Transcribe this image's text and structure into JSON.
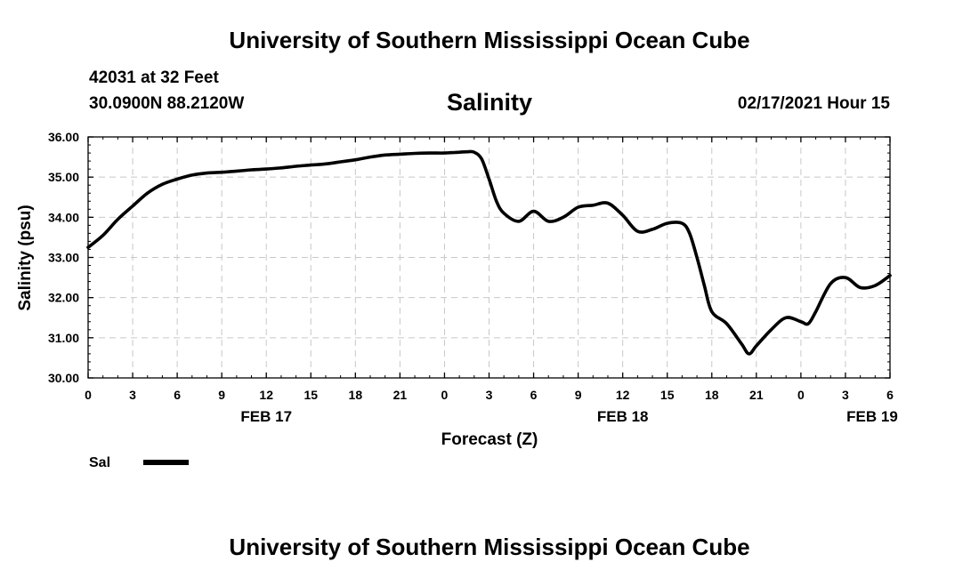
{
  "header": {
    "title": "University of Southern Mississippi Ocean Cube",
    "station": "42031 at 32 Feet",
    "coords": "30.0900N 88.2120W",
    "chart_title": "Salinity",
    "issued": "02/17/2021 Hour 15"
  },
  "footer": {
    "title": "University of Southern Mississippi Ocean Cube"
  },
  "legend": {
    "label": "Sal",
    "color": "#000000"
  },
  "chart_data": {
    "type": "line",
    "title": "Salinity",
    "xlabel": "Forecast (Z)",
    "ylabel": "Salinity (psu)",
    "xlim": [
      0,
      54
    ],
    "ylim": [
      30.0,
      36.0
    ],
    "grid": true,
    "x_tick_values": [
      0,
      3,
      6,
      9,
      12,
      15,
      18,
      21,
      24,
      27,
      30,
      33,
      36,
      39,
      42,
      45,
      48,
      51,
      54
    ],
    "x_tick_labels": [
      "0",
      "3",
      "6",
      "9",
      "12",
      "15",
      "18",
      "21",
      "0",
      "3",
      "6",
      "9",
      "12",
      "15",
      "18",
      "21",
      "0",
      "3",
      "6"
    ],
    "y_tick_values": [
      30,
      31,
      32,
      33,
      34,
      35,
      36
    ],
    "y_tick_labels": [
      "30.00",
      "31.00",
      "32.00",
      "33.00",
      "34.00",
      "35.00",
      "36.00"
    ],
    "date_labels": [
      {
        "label": "FEB 17",
        "x": 12
      },
      {
        "label": "FEB 18",
        "x": 36
      },
      {
        "label": "FEB 19",
        "x": 52.8
      }
    ],
    "series": [
      {
        "name": "Sal",
        "color": "#000000",
        "x": [
          0,
          1,
          2,
          3,
          4,
          5,
          6,
          7,
          8,
          9,
          10,
          11,
          12,
          13,
          14,
          15,
          16,
          17,
          18,
          19,
          20,
          21,
          22,
          23,
          24,
          25,
          25.5,
          26,
          26.5,
          27,
          27.5,
          28,
          29,
          30,
          31,
          32,
          33,
          34,
          35,
          36,
          37,
          38,
          39,
          40,
          40.5,
          41,
          41.5,
          42,
          43,
          44,
          44.5,
          45,
          46,
          47,
          48,
          48.5,
          49,
          50,
          51,
          52,
          53,
          54
        ],
        "values": [
          33.25,
          33.55,
          33.95,
          34.28,
          34.6,
          34.82,
          34.95,
          35.05,
          35.1,
          35.12,
          35.15,
          35.18,
          35.2,
          35.23,
          35.27,
          35.3,
          35.33,
          35.38,
          35.43,
          35.5,
          35.55,
          35.57,
          35.59,
          35.6,
          35.6,
          35.62,
          35.63,
          35.62,
          35.45,
          34.95,
          34.4,
          34.1,
          33.9,
          34.15,
          33.9,
          34.0,
          34.25,
          34.3,
          34.35,
          34.05,
          33.65,
          33.7,
          33.85,
          33.85,
          33.6,
          33.0,
          32.3,
          31.65,
          31.35,
          30.85,
          30.6,
          30.8,
          31.2,
          31.5,
          31.4,
          31.35,
          31.65,
          32.35,
          32.5,
          32.25,
          32.3,
          32.55
        ]
      }
    ]
  }
}
